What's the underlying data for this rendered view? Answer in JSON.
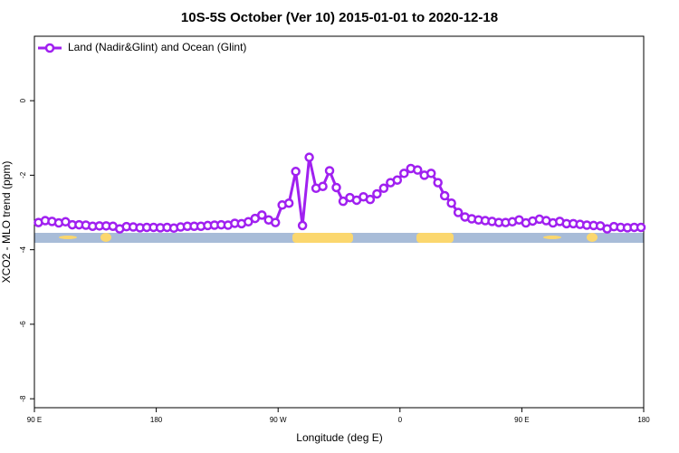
{
  "chart_data": {
    "type": "line",
    "title": "10S-5S October (Ver 10)   2015-01-01 to 2020-12-18",
    "x_label": "Longitude (deg E)",
    "y_label": "XCO2 - MLO trend (ppm)",
    "x": [
      93,
      98,
      103,
      108,
      113,
      118,
      123,
      128,
      133,
      138,
      143,
      148,
      153,
      158,
      163,
      168,
      173,
      178,
      183,
      188,
      193,
      198,
      203,
      208,
      213,
      218,
      223,
      228,
      233,
      238,
      243,
      248,
      253,
      258,
      263,
      268,
      273,
      278,
      283,
      288,
      293,
      298,
      303,
      308,
      313,
      318,
      323,
      328,
      333,
      338,
      343,
      348,
      353,
      358,
      363,
      368,
      373,
      378,
      383,
      388,
      393,
      398,
      403,
      408,
      413,
      418,
      423,
      428,
      433,
      438,
      443,
      448,
      453,
      458,
      463,
      468,
      473,
      478,
      483,
      488,
      493,
      498,
      503,
      508,
      513,
      518,
      523,
      528,
      533,
      538
    ],
    "series": [
      {
        "name": "Land (Nadir&Glint) and Ocean (Glint)",
        "color": "#a020f0",
        "values": [
          -3.27,
          -3.22,
          -3.24,
          -3.28,
          -3.25,
          -3.33,
          -3.33,
          -3.34,
          -3.37,
          -3.36,
          -3.36,
          -3.37,
          -3.44,
          -3.38,
          -3.39,
          -3.41,
          -3.4,
          -3.4,
          -3.41,
          -3.4,
          -3.42,
          -3.39,
          -3.37,
          -3.37,
          -3.37,
          -3.35,
          -3.34,
          -3.33,
          -3.34,
          -3.29,
          -3.3,
          -3.25,
          -3.16,
          -3.07,
          -3.2,
          -3.27,
          -2.8,
          -2.75,
          -1.9,
          -3.35,
          -1.52,
          -2.35,
          -2.3,
          -1.88,
          -2.33,
          -2.7,
          -2.6,
          -2.67,
          -2.58,
          -2.65,
          -2.5,
          -2.35,
          -2.2,
          -2.13,
          -1.95,
          -1.82,
          -1.86,
          -2.0,
          -1.95,
          -2.2,
          -2.55,
          -2.75,
          -3.0,
          -3.12,
          -3.17,
          -3.2,
          -3.22,
          -3.24,
          -3.27,
          -3.27,
          -3.25,
          -3.2,
          -3.28,
          -3.23,
          -3.18,
          -3.22,
          -3.28,
          -3.24,
          -3.3,
          -3.3,
          -3.32,
          -3.34,
          -3.35,
          -3.36,
          -3.44,
          -3.38,
          -3.4,
          -3.41,
          -3.4,
          -3.4
        ]
      }
    ],
    "xlim": [
      90,
      540
    ],
    "xticks": [
      {
        "value": 90,
        "label": "90 E"
      },
      180,
      {
        "value": 270,
        "label": "90 W"
      },
      {
        "value": 360,
        "label": "0"
      },
      {
        "value": 450,
        "label": "90 E"
      },
      {
        "value": 540,
        "label": "180"
      }
    ],
    "ylim": [
      -8.24,
      1.73
    ],
    "yticks": [
      0,
      -2,
      -4,
      -6,
      -8
    ],
    "legend": "upper left"
  }
}
